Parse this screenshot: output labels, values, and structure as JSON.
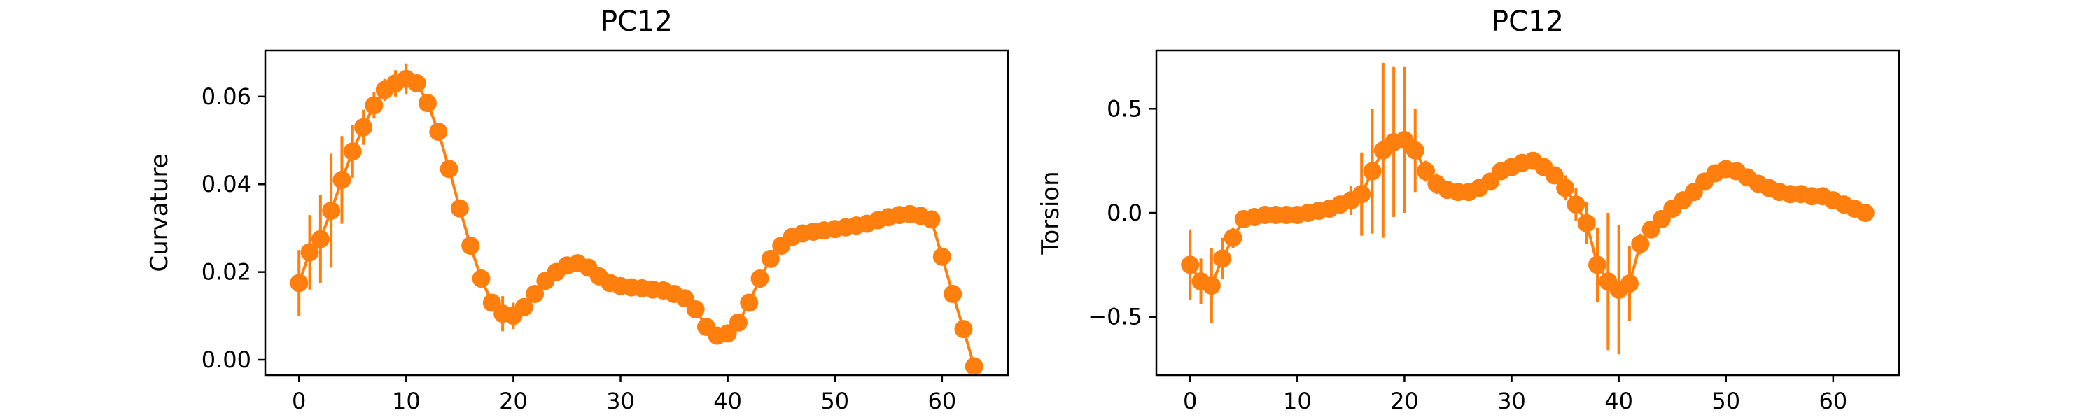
{
  "chart_data": [
    {
      "type": "line",
      "title": "PC12",
      "xlabel": "",
      "ylabel": "Curvature",
      "xlim": [
        -3.15,
        66.15
      ],
      "ylim": [
        -0.0035,
        0.0705
      ],
      "xticks": [
        0,
        10,
        20,
        30,
        40,
        50,
        60
      ],
      "xtick_labels": [
        "0",
        "10",
        "20",
        "30",
        "40",
        "50",
        "60"
      ],
      "yticks": [
        0.0,
        0.02,
        0.04,
        0.06
      ],
      "ytick_labels": [
        "0.00",
        "0.02",
        "0.04",
        "0.06"
      ],
      "grid": false,
      "color": "#ff7f0e",
      "series": [
        {
          "x": [
            0,
            1,
            2,
            3,
            4,
            5,
            6,
            7,
            8,
            9,
            10,
            11,
            12,
            13,
            14,
            15,
            16,
            17,
            18,
            19,
            20,
            21,
            22,
            23,
            24,
            25,
            26,
            27,
            28,
            29,
            30,
            31,
            32,
            33,
            34,
            35,
            36,
            37,
            38,
            39,
            40,
            41,
            42,
            43,
            44,
            45,
            46,
            47,
            48,
            49,
            50,
            51,
            52,
            53,
            54,
            55,
            56,
            57,
            58,
            59,
            60,
            61,
            62,
            63
          ],
          "y": [
            0.0175,
            0.0245,
            0.0275,
            0.034,
            0.041,
            0.0475,
            0.053,
            0.058,
            0.0615,
            0.063,
            0.064,
            0.063,
            0.0585,
            0.052,
            0.0435,
            0.0345,
            0.026,
            0.0185,
            0.013,
            0.0105,
            0.01,
            0.012,
            0.015,
            0.018,
            0.02,
            0.0215,
            0.022,
            0.021,
            0.019,
            0.0175,
            0.0168,
            0.0165,
            0.0163,
            0.016,
            0.0158,
            0.015,
            0.014,
            0.0115,
            0.0075,
            0.0055,
            0.006,
            0.0085,
            0.013,
            0.0185,
            0.023,
            0.026,
            0.028,
            0.0288,
            0.0292,
            0.0295,
            0.0298,
            0.0302,
            0.0306,
            0.031,
            0.0318,
            0.0325,
            0.033,
            0.0332,
            0.0328,
            0.032,
            0.0235,
            0.015,
            0.007,
            -0.0015
          ],
          "err": [
            0.0075,
            0.0085,
            0.01,
            0.013,
            0.01,
            0.006,
            0.004,
            0.003,
            0.0025,
            0.003,
            0.0035,
            0.002,
            0.001,
            0.001,
            0.001,
            0.001,
            0.001,
            0.001,
            0.0015,
            0.004,
            0.003,
            0.0015,
            0.001,
            0.001,
            0.001,
            0.001,
            0.001,
            0.001,
            0.001,
            0.001,
            0.001,
            0.001,
            0.001,
            0.001,
            0.001,
            0.001,
            0.001,
            0.001,
            0.001,
            0.001,
            0.001,
            0.001,
            0.001,
            0.001,
            0.001,
            0.001,
            0.001,
            0.001,
            0.001,
            0.001,
            0.001,
            0.001,
            0.001,
            0.001,
            0.001,
            0.001,
            0.001,
            0.001,
            0.001,
            0.001,
            0.001,
            0.001,
            0.001,
            0.001
          ]
        }
      ]
    },
    {
      "type": "line",
      "title": "PC12",
      "xlabel": "",
      "ylabel": "Torsion",
      "xlim": [
        -3.15,
        66.15
      ],
      "ylim": [
        -0.78,
        0.78
      ],
      "xticks": [
        0,
        10,
        20,
        30,
        40,
        50,
        60
      ],
      "xtick_labels": [
        "0",
        "10",
        "20",
        "30",
        "40",
        "50",
        "60"
      ],
      "yticks": [
        -0.5,
        0.0,
        0.5
      ],
      "ytick_labels": [
        "−0.5",
        "0.0",
        "0.5"
      ],
      "grid": false,
      "color": "#ff7f0e",
      "series": [
        {
          "x": [
            0,
            1,
            2,
            3,
            4,
            5,
            6,
            7,
            8,
            9,
            10,
            11,
            12,
            13,
            14,
            15,
            16,
            17,
            18,
            19,
            20,
            21,
            22,
            23,
            24,
            25,
            26,
            27,
            28,
            29,
            30,
            31,
            32,
            33,
            34,
            35,
            36,
            37,
            38,
            39,
            40,
            41,
            42,
            43,
            44,
            45,
            46,
            47,
            48,
            49,
            50,
            51,
            52,
            53,
            54,
            55,
            56,
            57,
            58,
            59,
            60,
            61,
            62,
            63
          ],
          "y": [
            -0.25,
            -0.33,
            -0.35,
            -0.22,
            -0.12,
            -0.03,
            -0.02,
            -0.01,
            -0.01,
            -0.01,
            -0.01,
            0.0,
            0.01,
            0.02,
            0.04,
            0.06,
            0.09,
            0.2,
            0.3,
            0.34,
            0.35,
            0.3,
            0.2,
            0.14,
            0.11,
            0.1,
            0.1,
            0.12,
            0.15,
            0.2,
            0.22,
            0.24,
            0.25,
            0.22,
            0.18,
            0.12,
            0.04,
            -0.05,
            -0.25,
            -0.33,
            -0.37,
            -0.34,
            -0.15,
            -0.08,
            -0.03,
            0.02,
            0.06,
            0.1,
            0.15,
            0.19,
            0.21,
            0.2,
            0.17,
            0.14,
            0.12,
            0.1,
            0.09,
            0.09,
            0.08,
            0.08,
            0.06,
            0.04,
            0.02,
            0.0
          ],
          "err": [
            0.17,
            0.11,
            0.18,
            0.1,
            0.05,
            0.03,
            0.02,
            0.02,
            0.02,
            0.02,
            0.02,
            0.02,
            0.02,
            0.03,
            0.04,
            0.07,
            0.2,
            0.3,
            0.42,
            0.36,
            0.35,
            0.2,
            0.05,
            0.05,
            0.03,
            0.03,
            0.03,
            0.03,
            0.03,
            0.03,
            0.03,
            0.03,
            0.03,
            0.03,
            0.03,
            0.06,
            0.08,
            0.1,
            0.18,
            0.33,
            0.31,
            0.18,
            0.05,
            0.03,
            0.02,
            0.02,
            0.02,
            0.02,
            0.02,
            0.02,
            0.02,
            0.02,
            0.02,
            0.02,
            0.02,
            0.02,
            0.02,
            0.02,
            0.02,
            0.02,
            0.02,
            0.02,
            0.02,
            0.02
          ]
        }
      ]
    }
  ]
}
